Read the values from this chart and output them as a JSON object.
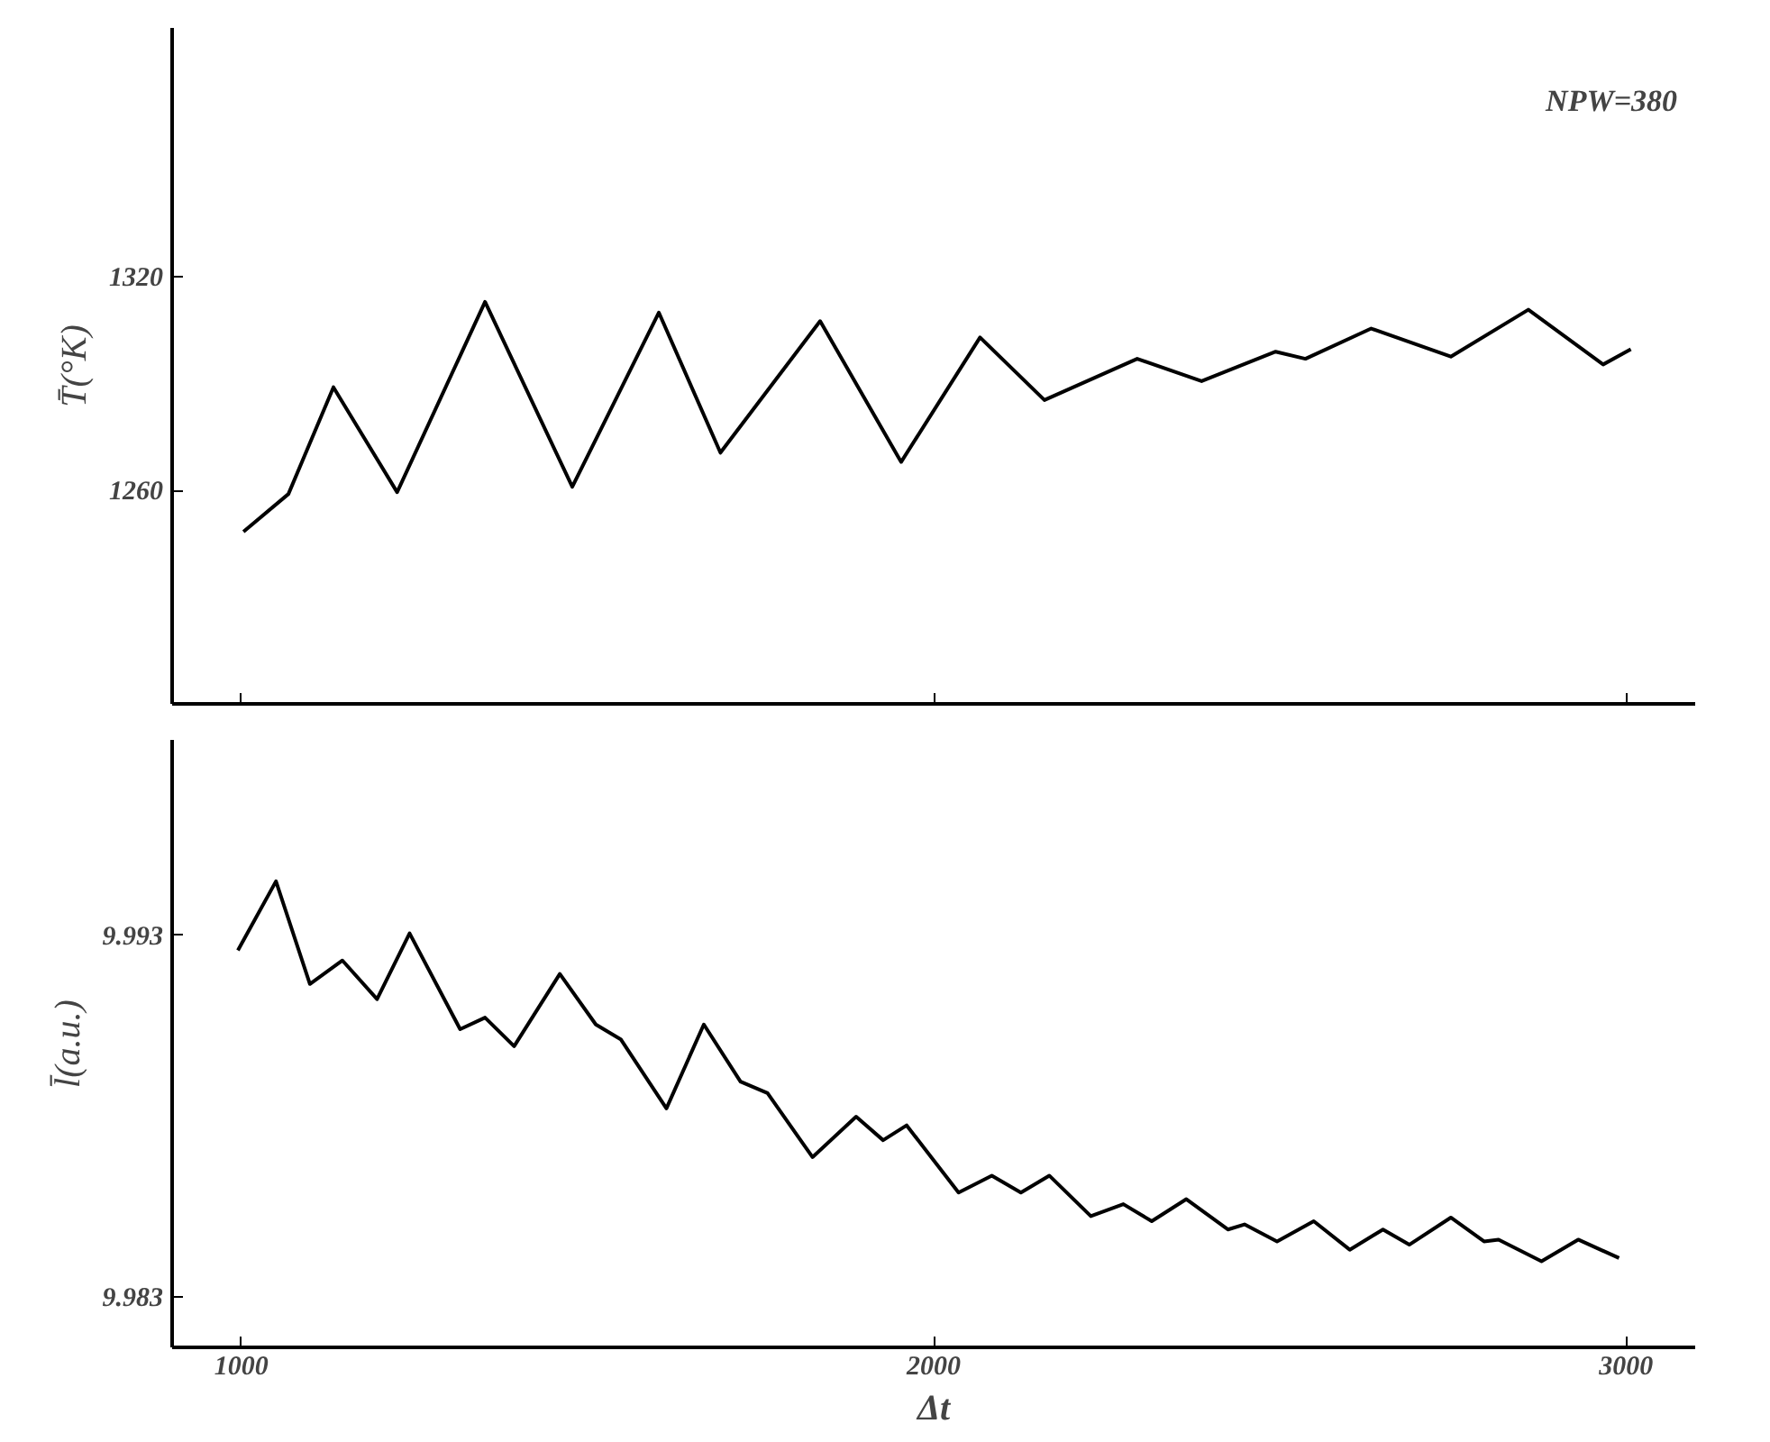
{
  "chart_data": [
    {
      "type": "line",
      "ylabel": "T̄(°K)",
      "annotations": [
        "NPW=380"
      ],
      "xlim": [
        900,
        3100
      ],
      "xticks": [
        1000,
        2000,
        3000
      ],
      "ylim": [
        1200,
        1390
      ],
      "yticks": [
        1260,
        1320
      ],
      "tick_labels": "y",
      "grid": false,
      "line_style": "solid",
      "x": [
        1003,
        1068,
        1133,
        1225,
        1352,
        1478,
        1603,
        1692,
        1836,
        1953,
        2067,
        2160,
        2294,
        2387,
        2494,
        2537,
        2632,
        2747,
        2859,
        2967,
        3007
      ],
      "series": [
        {
          "color": "#000000",
          "values": [
            1248.4,
            1259,
            1289,
            1259.5,
            1313,
            1261,
            1310,
            1270.6,
            1307.6,
            1268,
            1303,
            1285.4,
            1297,
            1290.7,
            1299,
            1297,
            1305.5,
            1297.6,
            1310.8,
            1295.4,
            1299.7
          ]
        }
      ]
    },
    {
      "type": "line",
      "ylabel": "l̄(a.u.)",
      "xlabel": "Δt",
      "xlim": [
        900,
        3100
      ],
      "xticks": [
        1000,
        2000,
        3000
      ],
      "ylim": [
        9.9816,
        9.9984
      ],
      "yticks": [
        9.983,
        9.993
      ],
      "grid": false,
      "line_style": "solid",
      "x": [
        995,
        1050,
        1099,
        1146,
        1196,
        1243,
        1316,
        1352,
        1394,
        1460,
        1512,
        1548,
        1614,
        1668,
        1721,
        1760,
        1825,
        1888,
        1927,
        1961,
        2036,
        2084,
        2126,
        2167,
        2227,
        2274,
        2315,
        2365,
        2425,
        2449,
        2496,
        2549,
        2601,
        2649,
        2687,
        2747,
        2795,
        2816,
        2878,
        2931,
        2990
      ],
      "series": [
        {
          "color": "#000000",
          "values": [
            9.99258,
            9.99449,
            9.99165,
            9.9923,
            9.99123,
            9.99305,
            9.9904,
            9.99072,
            9.98993,
            9.99193,
            9.99053,
            9.99012,
            9.98821,
            9.99053,
            9.98895,
            9.98863,
            9.98686,
            9.98798,
            9.98733,
            9.98774,
            9.98588,
            9.98635,
            9.98588,
            9.98635,
            9.98523,
            9.98556,
            9.98509,
            9.9857,
            9.98486,
            9.985,
            9.98453,
            9.98509,
            9.9843,
            9.98486,
            9.98444,
            9.98519,
            9.98453,
            9.98458,
            9.98398,
            9.98458,
            9.98407
          ]
        }
      ]
    }
  ]
}
